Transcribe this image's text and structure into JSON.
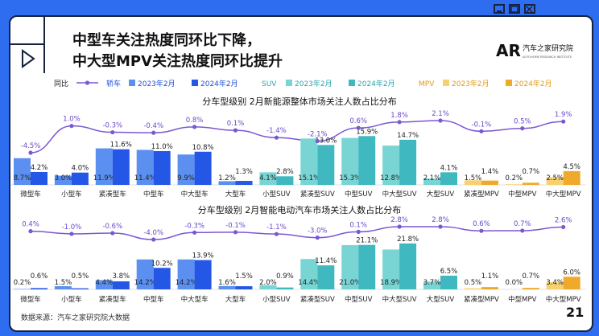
{
  "header": {
    "title_line1": "中型车关注热度同环比下降，",
    "title_line2": "中大型MPV关注热度同环比提升",
    "brand_name": "汽车之家研究院",
    "brand_sub": "AUTOHOME RESEARCH INSTITUTE",
    "brand_logo_text": "AR"
  },
  "legend": {
    "mom_label": "同比",
    "groups": [
      {
        "name": "轿车",
        "items": [
          "2023年2月",
          "2024年2月"
        ]
      },
      {
        "name": "SUV",
        "items": [
          "2023年2月",
          "2024年2月"
        ]
      },
      {
        "name": "MPV",
        "items": [
          "2023年2月",
          "2024年2月"
        ]
      }
    ]
  },
  "colors": {
    "frame": "#2f6df0",
    "card_border": "#15233f",
    "sedan_2023": "#5b8ff0",
    "sedan_2024": "#2457e6",
    "suv_2023": "#79d4d4",
    "suv_2024": "#3fb8c0",
    "mpv_2023": "#f7d070",
    "mpv_2024": "#efaa2c",
    "line": "#7b57d0",
    "line_label": "#6a48c8"
  },
  "footer": {
    "source": "数据来源：汽车之家研究院大数据",
    "page": "21"
  },
  "chart_data": [
    {
      "type": "bar",
      "title": "分车型级别 2月新能源整体市场关注人数占比分布",
      "categories": [
        "微型车",
        "小型车",
        "紧凑型车",
        "中型车",
        "中大型车",
        "大型车",
        "小型SUV",
        "紧凑型SUV",
        "中型SUV",
        "中大型SUV",
        "大型SUV",
        "紧凑型MPV",
        "中型MPV",
        "中大型MPV"
      ],
      "category_group": [
        "轿车",
        "轿车",
        "轿车",
        "轿车",
        "轿车",
        "轿车",
        "SUV",
        "SUV",
        "SUV",
        "SUV",
        "SUV",
        "MPV",
        "MPV",
        "MPV"
      ],
      "series": [
        {
          "name": "2023年2月",
          "values": [
            8.7,
            3.0,
            11.9,
            11.4,
            9.9,
            1.2,
            4.1,
            15.1,
            15.3,
            12.8,
            2.1,
            1.5,
            0.2,
            2.5
          ],
          "labels": [
            "8.7%",
            "3.0%",
            "11.9%",
            "11.4%",
            "9.9%",
            "1.2%",
            "4.1%",
            "15.1%",
            "15.3%",
            "12.8%",
            "2.1%",
            "1.5%",
            "0.2%",
            "2.5%"
          ]
        },
        {
          "name": "2024年2月",
          "values": [
            4.2,
            4.0,
            11.6,
            11.0,
            10.8,
            1.3,
            2.8,
            13.0,
            15.9,
            14.7,
            4.1,
            1.4,
            0.7,
            4.5
          ],
          "labels": [
            "4.2%",
            "4.0%",
            "11.6%",
            "11.0%",
            "10.8%",
            "1.3%",
            "2.8%",
            "13.0%",
            "15.9%",
            "14.7%",
            "4.1%",
            "1.4%",
            "0.7%",
            "4.5%"
          ]
        }
      ],
      "line": {
        "name": "同比",
        "values": [
          -4.5,
          1.0,
          -0.3,
          -0.4,
          0.8,
          0.1,
          -1.4,
          -2.1,
          0.6,
          1.8,
          2.1,
          -0.1,
          0.5,
          1.9
        ],
        "labels": [
          "-4.5%",
          "1.0%",
          "-0.3%",
          "-0.4%",
          "0.8%",
          "0.1%",
          "-1.4%",
          "-2.1%",
          "0.6%",
          "1.8%",
          "2.1%",
          "-0.1%",
          "0.5%",
          "1.9%"
        ]
      }
    },
    {
      "type": "bar",
      "title": "分车型级别 2月智能电动汽车市场关注人数占比分布",
      "categories": [
        "微型车",
        "小型车",
        "紧凑型车",
        "中型车",
        "中大型车",
        "大型车",
        "小型SUV",
        "紧凑型SUV",
        "中型SUV",
        "中大型SUV",
        "大型SUV",
        "紧凑型MPV",
        "中型MPV",
        "中大型MPV"
      ],
      "category_group": [
        "轿车",
        "轿车",
        "轿车",
        "轿车",
        "轿车",
        "轿车",
        "SUV",
        "SUV",
        "SUV",
        "SUV",
        "SUV",
        "MPV",
        "MPV",
        "MPV"
      ],
      "series": [
        {
          "name": "2023年2月",
          "values": [
            0.2,
            1.5,
            4.4,
            14.2,
            14.2,
            1.6,
            2.0,
            14.4,
            21.0,
            18.9,
            3.7,
            0.5,
            0.0,
            3.4
          ],
          "labels": [
            "0.2%",
            "1.5%",
            "4.4%",
            "14.2%",
            "14.2%",
            "1.6%",
            "2.0%",
            "14.4%",
            "21.0%",
            "18.9%",
            "3.7%",
            "0.5%",
            "0.0%",
            "3.4%"
          ]
        },
        {
          "name": "2024年2月",
          "values": [
            0.6,
            0.5,
            3.8,
            10.2,
            13.9,
            1.5,
            0.9,
            11.4,
            21.1,
            21.8,
            6.5,
            1.1,
            0.7,
            6.0
          ],
          "labels": [
            "0.6%",
            "0.5%",
            "3.8%",
            "10.2%",
            "13.9%",
            "1.5%",
            "0.9%",
            "11.4%",
            "21.1%",
            "21.8%",
            "6.5%",
            "1.1%",
            "0.7%",
            "6.0%"
          ]
        }
      ],
      "line": {
        "name": "同比",
        "values": [
          0.4,
          -1.0,
          -0.6,
          -4.0,
          -0.3,
          -0.1,
          -1.1,
          -3.0,
          0.1,
          2.8,
          2.8,
          0.6,
          0.7,
          2.6
        ],
        "labels": [
          "0.4%",
          "-1.0%",
          "-0.6%",
          "-4.0%",
          "-0.3%",
          "-0.1%",
          "-1.1%",
          "-3.0%",
          "0.1%",
          "2.8%",
          "2.8%",
          "0.6%",
          "0.7%",
          "2.6%"
        ]
      }
    }
  ]
}
